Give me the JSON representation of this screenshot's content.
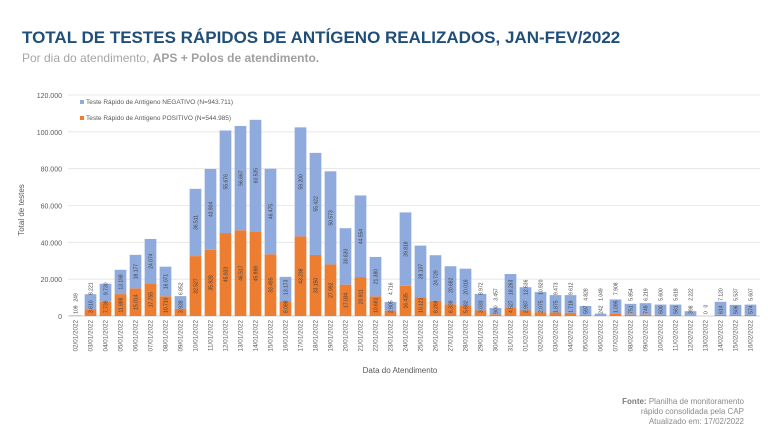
{
  "header": {
    "title": "TOTAL DE TESTES RÁPIDOS DE ANTÍGENO REALIZADOS, JAN-FEV/2022",
    "subtitle_plain": "Por dia do atendimento, ",
    "subtitle_bold": "APS + Polos de atendimento."
  },
  "footer": {
    "source_label": "Fonte:",
    "source_text": "Planilha de monitoramento",
    "source_text2": "rápido consolidada pela CAP",
    "updated": "Atualizado em: 17/02/2022"
  },
  "chart_data": {
    "type": "bar",
    "stacked": true,
    "xlabel": "Data do Atendimento",
    "ylabel": "Total de testes",
    "ylim": [
      0,
      120000
    ],
    "yticks": [
      "0",
      "20.000",
      "40.000",
      "60.000",
      "80.000",
      "100.000",
      "120.000"
    ],
    "grid": true,
    "legend_position": "top-left",
    "categories": [
      "02/01/2022",
      "03/01/2022",
      "04/01/2022",
      "05/01/2022",
      "06/01/2022",
      "07/01/2022",
      "08/01/2022",
      "09/01/2022",
      "10/01/2022",
      "11/01/2022",
      "12/01/2022",
      "13/01/2022",
      "14/01/2022",
      "15/01/2022",
      "16/01/2022",
      "17/01/2022",
      "18/01/2022",
      "19/01/2022",
      "20/01/2022",
      "21/01/2022",
      "22/01/2022",
      "23/01/2022",
      "24/01/2022",
      "25/01/2022",
      "26/01/2022",
      "27/01/2022",
      "28/01/2022",
      "29/01/2022",
      "30/01/2022",
      "31/01/2022",
      "01/02/2022",
      "02/02/2022",
      "03/02/2022",
      "04/02/2022",
      "05/02/2022",
      "06/02/2022",
      "07/02/2022",
      "08/02/2022",
      "09/02/2022",
      "10/02/2022",
      "11/02/2022",
      "12/02/2022",
      "13/02/2022",
      "14/02/2022",
      "15/02/2022",
      "16/02/2022"
    ],
    "series": [
      {
        "name": "Teste Rápido de Antígeno POSITIVO (N=544.985)",
        "color": "#ed7d31",
        "values": [
          109,
          3610,
          7738,
          11888,
          15014,
          17755,
          10710,
          3939,
          32527,
          35928,
          45033,
          46517,
          45988,
          33495,
          8088,
          43238,
          33150,
          27992,
          17034,
          20911,
          10681,
          2905,
          16435,
          10121,
          8269,
          6339,
          5682,
          3033,
          900,
          4527,
          2987,
          2075,
          1875,
          1718,
          597,
          242,
          1095,
          751,
          749,
          600,
          561,
          398,
          0,
          614,
          506,
          574
        ]
      },
      {
        "name": "Teste Rápido de Antígeno NEGATIVO (N=943.711)",
        "color": "#8faadc",
        "values": [
          249,
          8221,
          9730,
          13198,
          18177,
          24074,
          16071,
          6852,
          36511,
          43904,
          55676,
          56667,
          60535,
          46475,
          13173,
          59200,
          55422,
          50573,
          30630,
          44554,
          21380,
          4716,
          39818,
          28107,
          24729,
          20682,
          20018,
          8972,
          3457,
          18263,
          12636,
          10920,
          9473,
          9612,
          4828,
          1049,
          7908,
          5854,
          6219,
          5600,
          5618,
          2222,
          0,
          7120,
          5537,
          5607
        ]
      }
    ]
  }
}
